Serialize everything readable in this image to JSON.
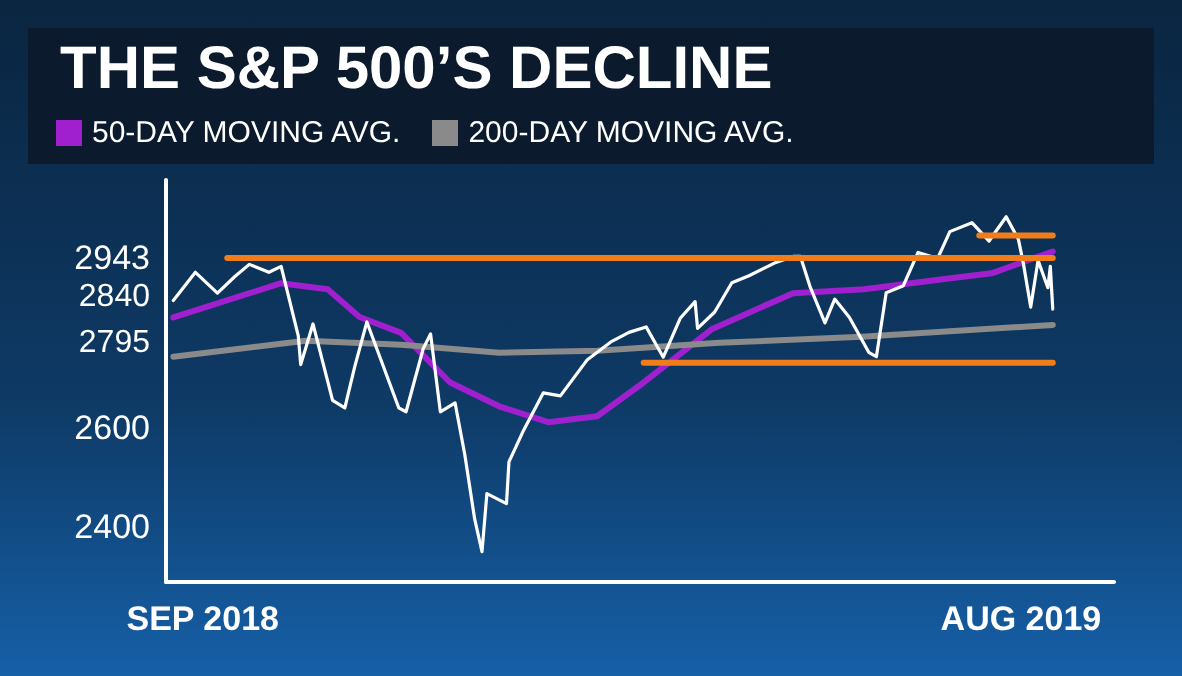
{
  "chart_data": {
    "type": "line",
    "title": "THE S&P 500’S DECLINE",
    "legend": "top left",
    "marker": "none",
    "grid": false,
    "xlim": [
      "2018-08-17",
      "2019-09-08"
    ],
    "xticks": [
      {
        "value": "2018-09-01",
        "label": "SEP 2018"
      },
      {
        "value": "2019-08-01",
        "label": "AUG 2019"
      }
    ],
    "ylim": [
      2290,
      3100
    ],
    "yticks": [
      2400,
      2600,
      2795,
      2840,
      2943
    ],
    "series": [
      {
        "color": "#ffffff",
        "x": [
          "2018-08-20",
          "2018-08-29",
          "2018-09-07",
          "2018-09-14",
          "2018-09-20",
          "2018-09-28",
          "2018-10-03",
          "2018-10-10",
          "2018-10-11",
          "2018-10-16",
          "2018-10-24",
          "2018-10-29",
          "2018-11-02",
          "2018-11-07",
          "2018-11-20",
          "2018-11-23",
          "2018-11-30",
          "2018-12-03",
          "2018-12-07",
          "2018-12-13",
          "2018-12-17",
          "2018-12-21",
          "2018-12-24",
          "2018-12-26",
          "2019-01-03",
          "2019-01-04",
          "2019-01-10",
          "2019-01-18",
          "2019-01-25",
          "2019-02-05",
          "2019-02-15",
          "2019-02-22",
          "2019-03-01",
          "2019-03-08",
          "2019-03-15",
          "2019-03-21",
          "2019-03-22",
          "2019-03-29",
          "2019-04-05",
          "2019-04-12",
          "2019-04-23",
          "2019-04-30",
          "2019-05-03",
          "2019-05-07",
          "2019-05-13",
          "2019-05-17",
          "2019-05-23",
          "2019-05-31",
          "2019-06-03",
          "2019-06-07",
          "2019-06-14",
          "2019-06-20",
          "2019-06-28",
          "2019-07-03",
          "2019-07-12",
          "2019-07-19",
          "2019-07-26",
          "2019-07-31",
          "2019-08-02",
          "2019-08-05",
          "2019-08-08",
          "2019-08-12",
          "2019-08-13",
          "2019-08-14"
        ],
        "values": [
          2857,
          2914,
          2872,
          2905,
          2930,
          2914,
          2926,
          2786,
          2728,
          2810,
          2656,
          2641,
          2723,
          2814,
          2641,
          2633,
          2760,
          2790,
          2633,
          2651,
          2546,
          2417,
          2351,
          2468,
          2448,
          2532,
          2596,
          2671,
          2665,
          2738,
          2775,
          2793,
          2804,
          2743,
          2822,
          2855,
          2801,
          2834,
          2893,
          2907,
          2934,
          2946,
          2946,
          2884,
          2812,
          2860,
          2823,
          2752,
          2744,
          2873,
          2887,
          2954,
          2942,
          2996,
          3014,
          2977,
          3026,
          2980,
          2932,
          2844,
          2938,
          2883,
          2926,
          2840
        ]
      },
      {
        "name": "50-DAY MOVING AVG.",
        "color": "#a020d0",
        "x": [
          "2018-08-20",
          "2018-10-03",
          "2018-10-22",
          "2018-11-04",
          "2018-11-21",
          "2018-12-11",
          "2018-12-31",
          "2019-01-20",
          "2019-02-09",
          "2019-02-28",
          "2019-03-28",
          "2019-04-30",
          "2019-05-29",
          "2019-06-30",
          "2019-07-20",
          "2019-08-14"
        ],
        "values": [
          2823,
          2892,
          2880,
          2824,
          2792,
          2692,
          2644,
          2612,
          2624,
          2692,
          2800,
          2872,
          2880,
          2900,
          2912,
          2956
        ]
      },
      {
        "name": "200-DAY MOVING AVG.",
        "color": "#8a8a8a",
        "x": [
          "2018-08-20",
          "2018-10-13",
          "2018-11-21",
          "2018-12-31",
          "2019-02-09",
          "2019-03-31",
          "2019-05-28",
          "2019-08-14"
        ],
        "values": [
          2744,
          2776,
          2768,
          2752,
          2756,
          2772,
          2784,
          2808
        ]
      },
      {
        "color": "#f07d1a",
        "x": [
          "2018-09-11",
          "2019-08-14"
        ],
        "values": [
          2943,
          2943
        ]
      },
      {
        "color": "#f07d1a",
        "x": [
          "2019-07-15",
          "2019-08-14"
        ],
        "values": [
          2988,
          2988
        ]
      },
      {
        "color": "#f07d1a",
        "x": [
          "2019-02-28",
          "2019-08-14"
        ],
        "values": [
          2732,
          2732
        ]
      }
    ]
  }
}
